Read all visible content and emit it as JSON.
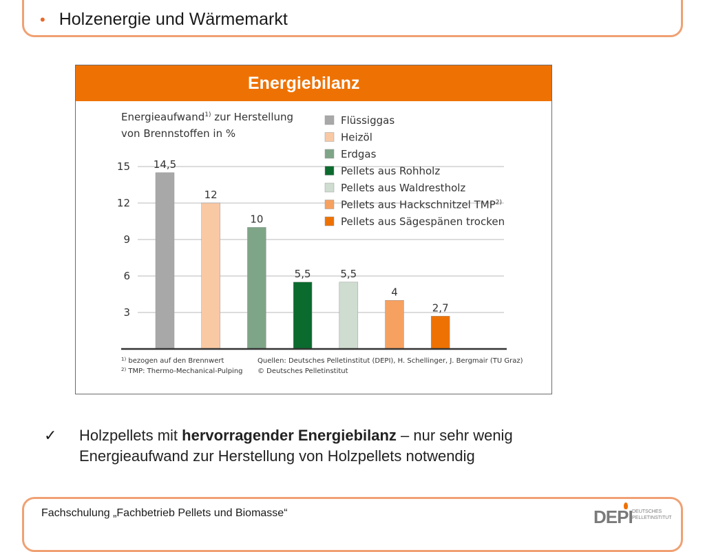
{
  "header": {
    "bullet": "•",
    "title": "Holzenergie und Wärmemarkt"
  },
  "chart_data": {
    "type": "bar",
    "title": "Energiebilanz",
    "ylabel_line1": "Energieaufwand",
    "ylabel_sup": "1)",
    "ylabel_line1_rest": " zur Herstellung",
    "ylabel_line2": "von Brennstoffen in %",
    "yticks": [
      "3",
      "6",
      "9",
      "12",
      "15"
    ],
    "ylim": [
      0,
      15
    ],
    "categories": [
      "Flüssiggas",
      "Heizöl",
      "Erdgas",
      "Pellets aus Rohholz",
      "Pellets aus Waldrestholz",
      "Pellets aus Hackschnitzel TMP",
      "Pellets aus Sägespänen trocken"
    ],
    "values": [
      14.5,
      12,
      10,
      5.5,
      5.5,
      4,
      2.7
    ],
    "value_labels": [
      "14,5",
      "12",
      "10",
      "5,5",
      "5,5",
      "4",
      "2,7"
    ],
    "colors": [
      "#a8a8a8",
      "#f9c9a4",
      "#7ea587",
      "#0b6a2e",
      "#cfdcd0",
      "#f6a160",
      "#ee7203"
    ],
    "legend_sups": [
      "",
      "",
      "",
      "",
      "",
      "2)",
      ""
    ],
    "legend_position": "top-right",
    "grid": true,
    "footnotes": [
      {
        "sup": "1)",
        "text": " bezogen auf den Brennwert"
      },
      {
        "sup": "2)",
        "text": " TMP: Thermo-Mechanical-Pulping"
      }
    ],
    "sources": [
      "Quellen: Deutsches Pelletinstitut (DEPI), H. Schellinger, J. Bergmair (TU Graz)",
      "© Deutsches Pelletinstitut"
    ]
  },
  "bullet_point": {
    "check": "✓",
    "text_before": "Holzpellets mit ",
    "text_bold": "hervorragender Energiebilanz",
    "text_after": " – nur sehr wenig Energieaufwand zur Herstellung von Holzpellets notwendig"
  },
  "footer": {
    "text": "Fachschulung „Fachbetrieb Pellets und Biomasse“",
    "logo_text": "DEPI",
    "logo_sub_line1": "DEUTSCHES",
    "logo_sub_line2": "PELLETINSTITUT"
  }
}
